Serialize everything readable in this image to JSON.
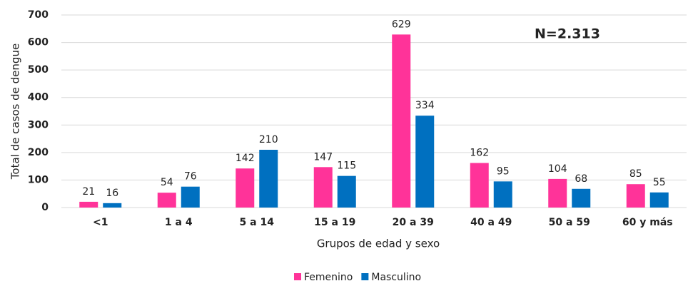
{
  "chart_data": {
    "type": "bar",
    "x_label": "Grupos de edad y sexo",
    "y_label": "Total de casos de dengue",
    "annotation": "N=2.313",
    "categories": [
      "<1",
      "1 a 4",
      "5 a 14",
      "15 a 19",
      "20 a 39",
      "40 a 49",
      "50 a 59",
      "60 y más"
    ],
    "series": [
      {
        "name": "Femenino",
        "color": "#ff3399",
        "values": [
          21,
          54,
          142,
          147,
          629,
          162,
          104,
          85
        ]
      },
      {
        "name": "Masculino",
        "color": "#0070c0",
        "values": [
          16,
          76,
          210,
          115,
          334,
          95,
          68,
          55
        ]
      }
    ],
    "ylim": [
      0,
      700
    ],
    "yticks": [
      0,
      100,
      200,
      300,
      400,
      500,
      600,
      700
    ],
    "grid": true,
    "legend": "bottom"
  }
}
